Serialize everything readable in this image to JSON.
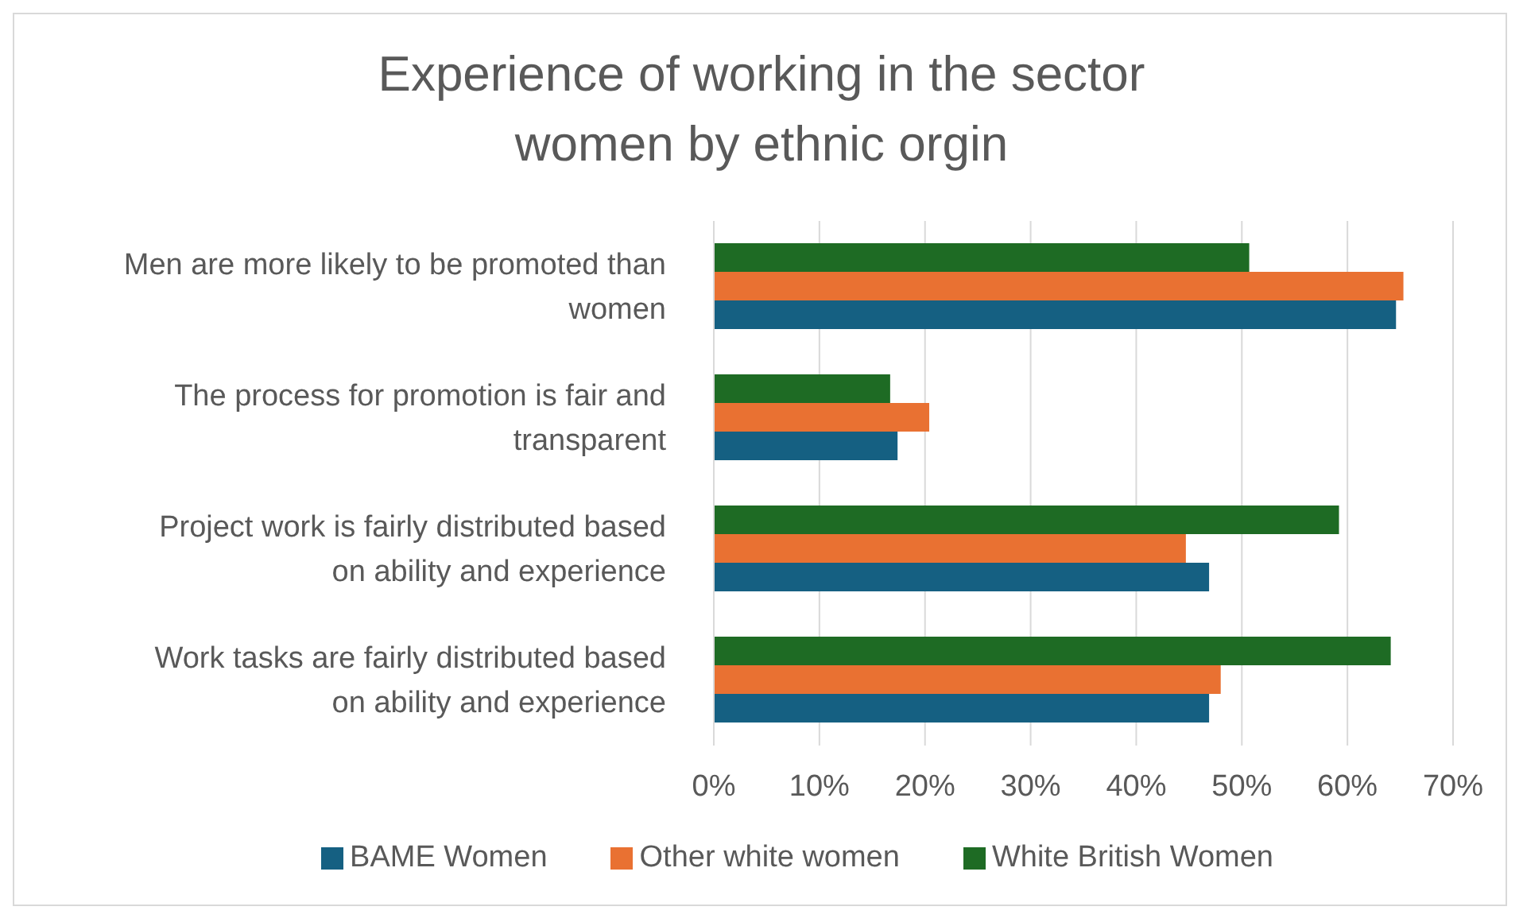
{
  "chart_data": {
    "type": "bar",
    "orientation": "horizontal",
    "title": "Experience of working in the sector\nwomen by ethnic orgin",
    "categories": [
      "Men are more likely to be promoted than women",
      "The process for promotion is fair and transparent",
      "Project work is fairly distributed based on ability and experience",
      "Work tasks are fairly distributed based on ability and experience"
    ],
    "series": [
      {
        "name": "White British Women",
        "color": "#1e6b24",
        "values": [
          50.7,
          16.7,
          59.2,
          64.1
        ]
      },
      {
        "name": "Other white women",
        "color": "#e97132",
        "values": [
          65.3,
          20.4,
          44.7,
          48.0
        ]
      },
      {
        "name": "BAME Women",
        "color": "#156082",
        "values": [
          64.6,
          17.4,
          46.9,
          46.9
        ]
      }
    ],
    "xlim": [
      0,
      70
    ],
    "xticks": [
      {
        "value": 0,
        "label": "0%"
      },
      {
        "value": 10,
        "label": "10%"
      },
      {
        "value": 20,
        "label": "20%"
      },
      {
        "value": 30,
        "label": "30%"
      },
      {
        "value": 40,
        "label": "40%"
      },
      {
        "value": 50,
        "label": "50%"
      },
      {
        "value": 60,
        "label": "60%"
      },
      {
        "value": 70,
        "label": "70%"
      }
    ],
    "grid": "x",
    "legend": "bottom"
  }
}
